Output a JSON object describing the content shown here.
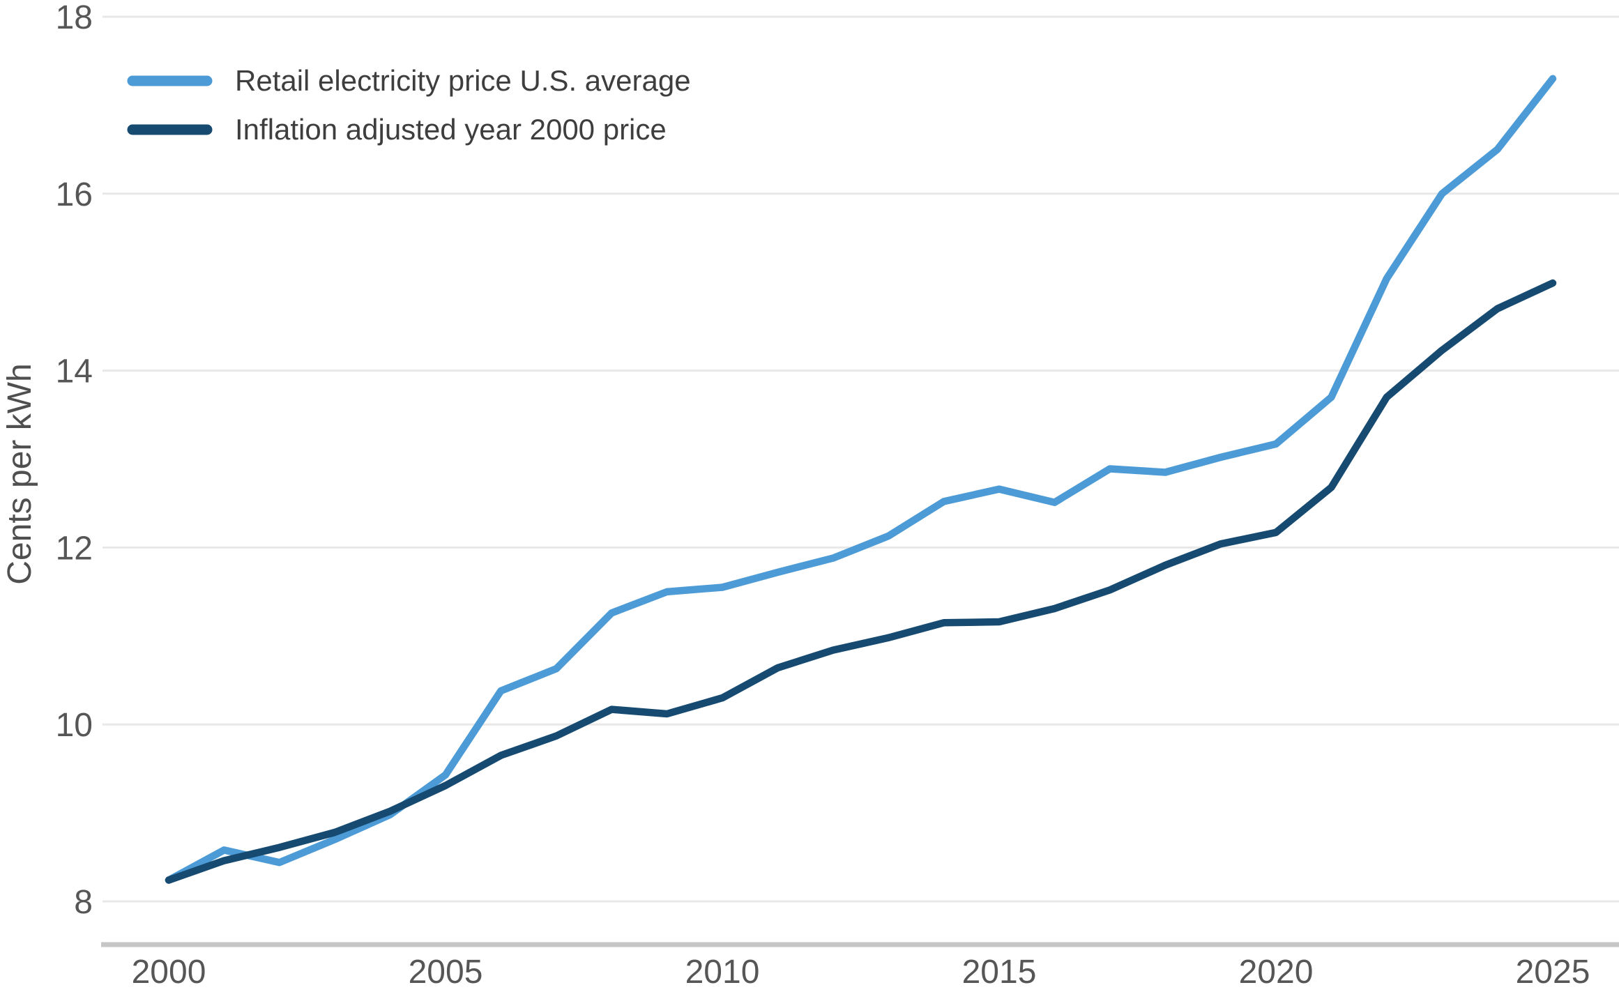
{
  "chart_data": {
    "type": "line",
    "title": "",
    "xlabel": "",
    "ylabel": "Cents per kWh",
    "x": [
      2000,
      2001,
      2002,
      2003,
      2004,
      2005,
      2006,
      2007,
      2008,
      2009,
      2010,
      2011,
      2012,
      2013,
      2014,
      2015,
      2016,
      2017,
      2018,
      2019,
      2020,
      2021,
      2022,
      2023,
      2024,
      2025
    ],
    "series": [
      {
        "name": "Retail electricity price U.S. average",
        "color": "#4D9BD6",
        "values": [
          8.24,
          8.58,
          8.44,
          8.7,
          8.98,
          9.43,
          10.38,
          10.63,
          11.26,
          11.5,
          11.55,
          11.72,
          11.88,
          12.13,
          12.52,
          12.66,
          12.51,
          12.89,
          12.85,
          13.02,
          13.17,
          13.7,
          15.04,
          16.0,
          16.5,
          17.3
        ]
      },
      {
        "name": "Inflation adjusted year 2000 price",
        "color": "#164A71",
        "values": [
          8.24,
          8.46,
          8.61,
          8.78,
          9.02,
          9.31,
          9.65,
          9.87,
          10.17,
          10.12,
          10.3,
          10.64,
          10.84,
          10.98,
          11.15,
          11.16,
          11.31,
          11.52,
          11.8,
          12.04,
          12.17,
          12.68,
          13.7,
          14.23,
          14.7,
          14.99
        ]
      }
    ],
    "xlim": [
      2000,
      2025
    ],
    "ylim": [
      8,
      18
    ],
    "xticks": [
      2000,
      2005,
      2010,
      2015,
      2020,
      2025
    ],
    "yticks": [
      8,
      10,
      12,
      14,
      16,
      18
    ],
    "grid": "horizontal",
    "legend_position": "top-left"
  }
}
